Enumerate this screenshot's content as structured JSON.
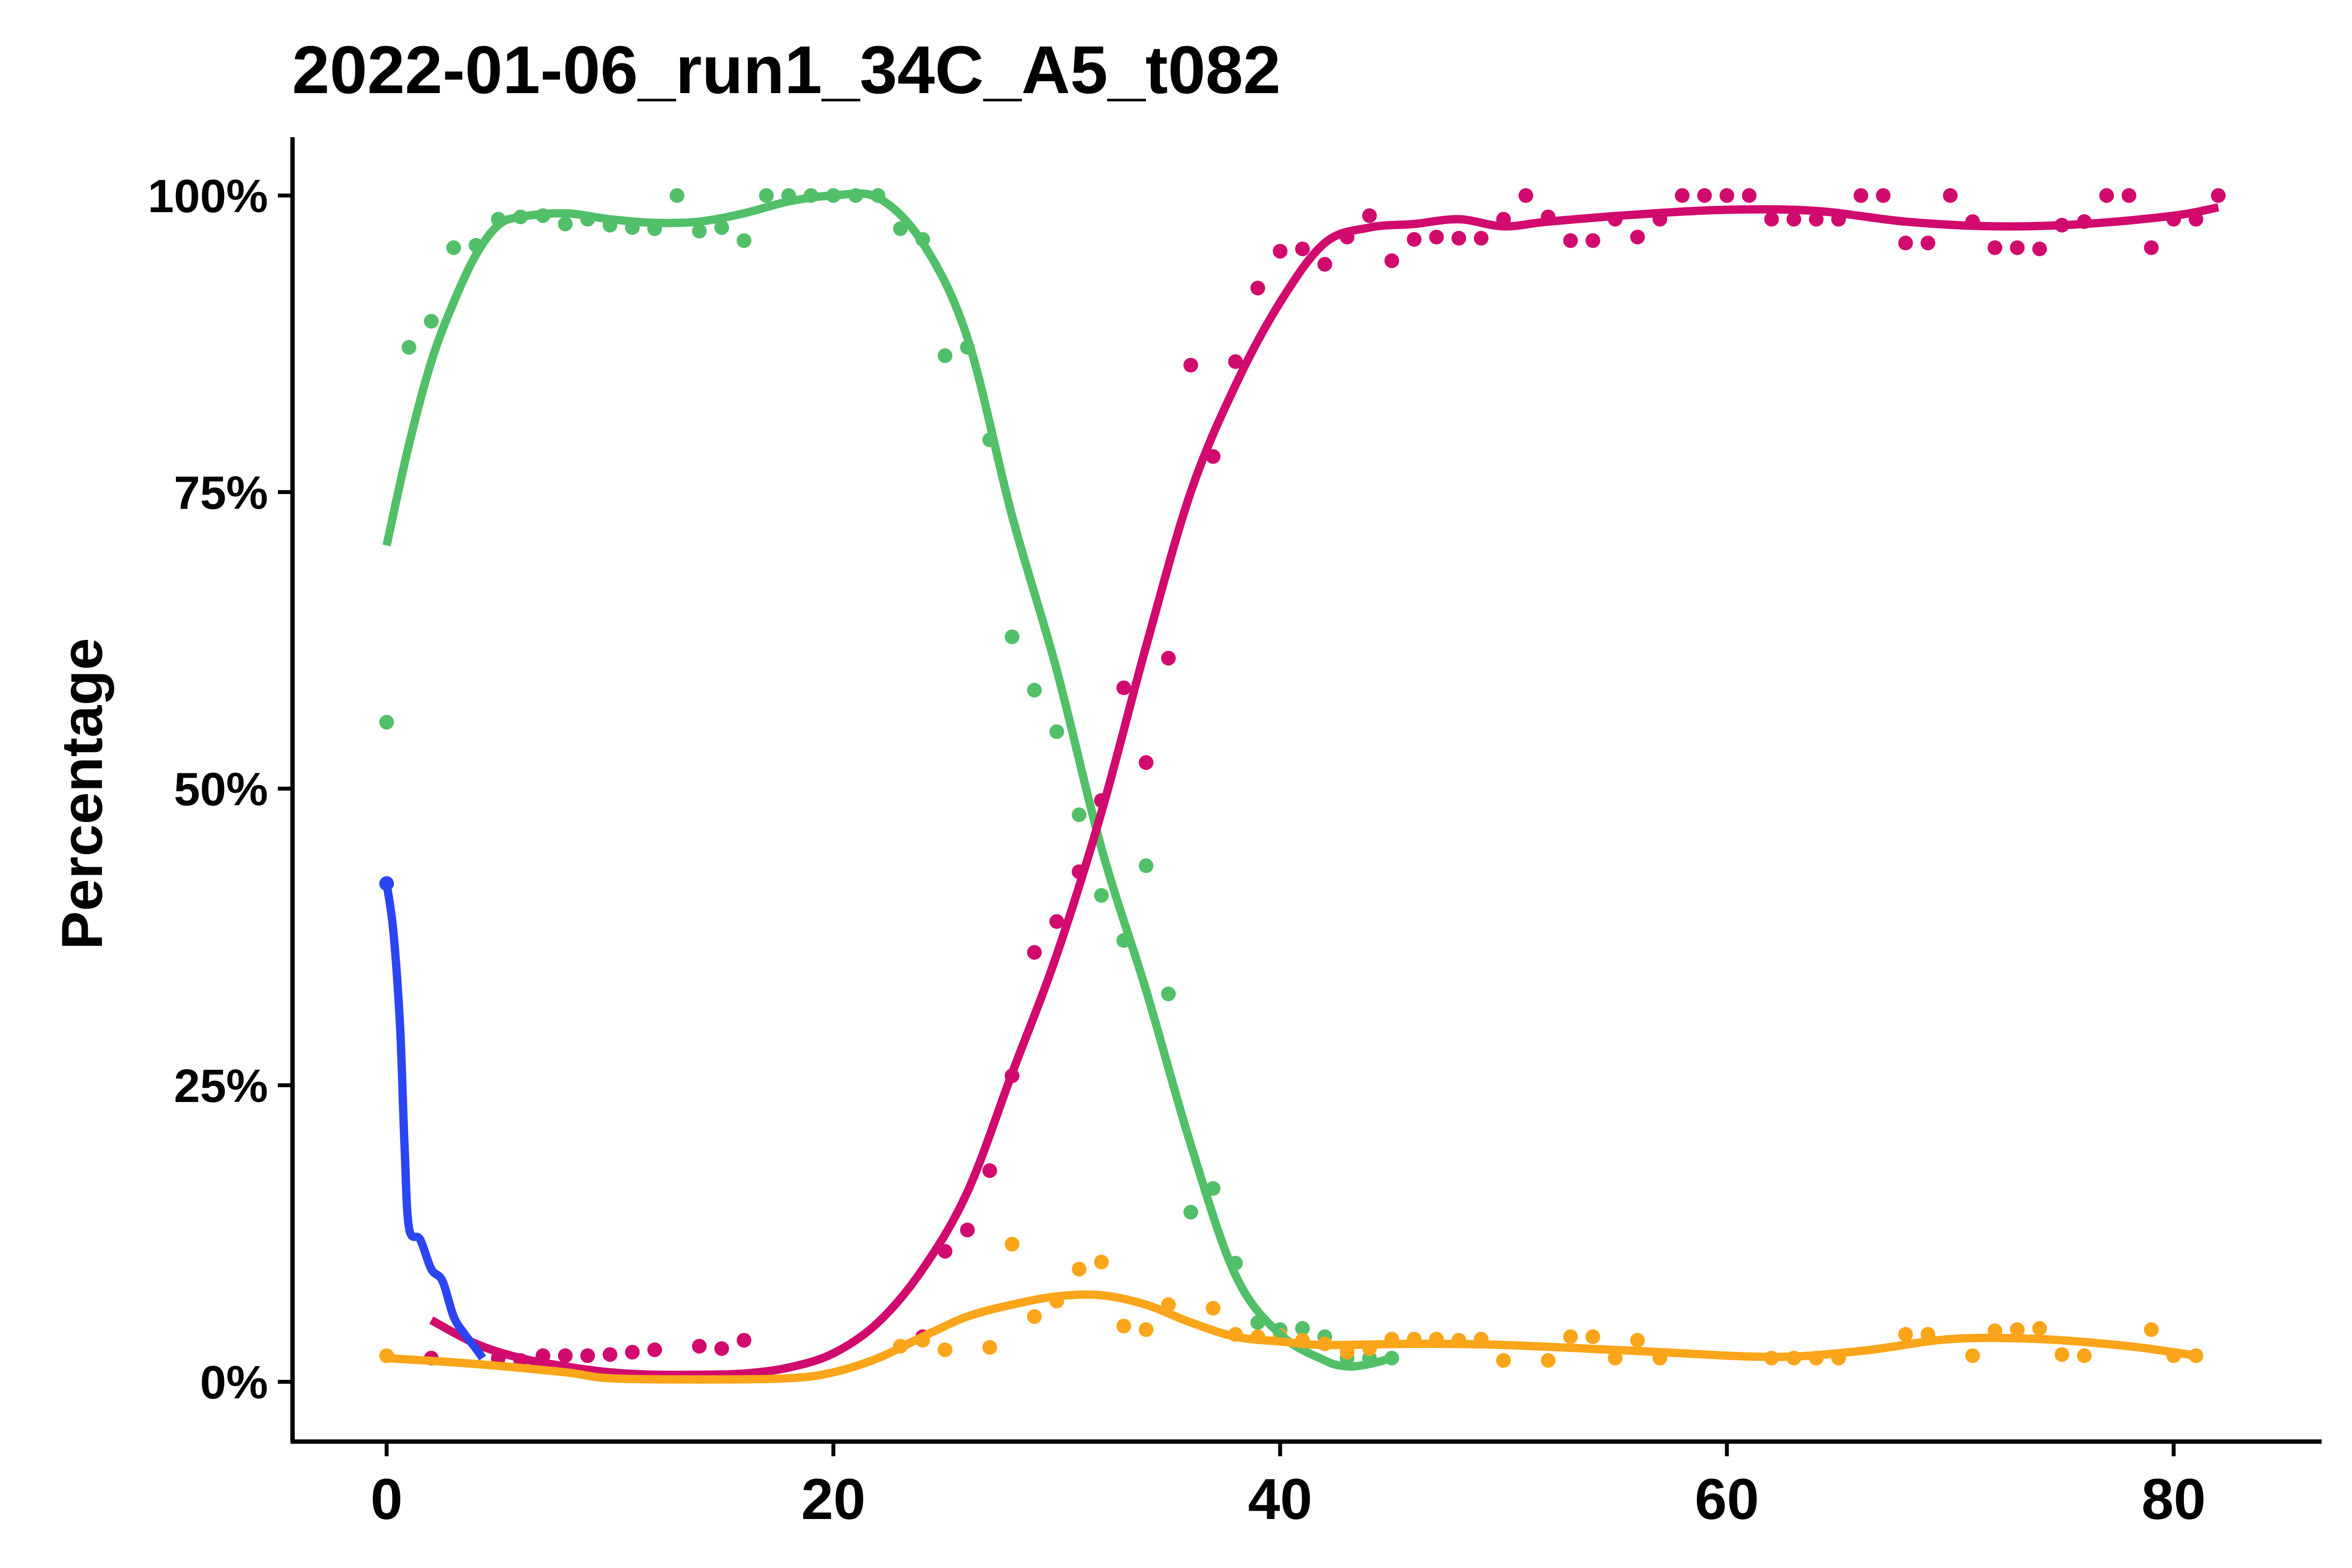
{
  "chart_data": {
    "type": "line",
    "title": "2022-01-06_run1_34C_A5_t082",
    "xlabel": "",
    "ylabel": "Percentage",
    "xlim": [
      -5,
      86
    ],
    "ylim": [
      -5,
      105
    ],
    "x_ticks": [
      0,
      20,
      40,
      60,
      80
    ],
    "x_tick_labels": [
      "0",
      "20",
      "40",
      "60",
      "80"
    ],
    "y_ticks": [
      0,
      25,
      50,
      75,
      100
    ],
    "y_tick_labels": [
      "0%",
      "25%",
      "50%",
      "75%",
      "100%"
    ],
    "grid": false,
    "legend": "none",
    "series": [
      {
        "color": "#2b45f0",
        "points": [
          [
            0,
            42
          ]
        ],
        "curve": [
          [
            0,
            42
          ],
          [
            0.3,
            38
          ],
          [
            0.6,
            30
          ],
          [
            0.8,
            20
          ],
          [
            1,
            13
          ],
          [
            1.5,
            12
          ],
          [
            2,
            9.5
          ],
          [
            2.5,
            8.5
          ],
          [
            3,
            5.5
          ],
          [
            3.5,
            4
          ],
          [
            4,
            2.8
          ],
          [
            4.3,
            2
          ]
        ]
      },
      {
        "color": "#d10a6e",
        "points": [
          [
            2,
            2
          ],
          [
            5,
            2
          ],
          [
            6,
            1.8
          ],
          [
            7,
            2.2
          ],
          [
            8,
            2.2
          ],
          [
            9,
            2.2
          ],
          [
            10,
            2.3
          ],
          [
            11,
            2.5
          ],
          [
            12,
            2.7
          ],
          [
            14,
            3
          ],
          [
            15,
            2.8
          ],
          [
            16,
            3.5
          ],
          [
            24,
            3.8
          ],
          [
            25,
            11
          ],
          [
            26,
            12.8
          ],
          [
            27,
            17.8
          ],
          [
            28,
            25.8
          ],
          [
            29,
            36.2
          ],
          [
            30,
            38.8
          ],
          [
            31,
            43
          ],
          [
            32,
            49
          ],
          [
            33,
            58.5
          ],
          [
            34,
            52.2
          ],
          [
            35,
            61
          ],
          [
            36,
            85.7
          ],
          [
            37,
            78
          ],
          [
            38,
            86
          ],
          [
            39,
            92.2
          ],
          [
            40,
            95.3
          ],
          [
            41,
            95.5
          ],
          [
            42,
            94.2
          ],
          [
            43,
            96.5
          ],
          [
            44,
            98.3
          ],
          [
            45,
            94.5
          ],
          [
            46,
            96.3
          ],
          [
            47,
            96.5
          ],
          [
            48,
            96.4
          ],
          [
            49,
            96.4
          ],
          [
            50,
            98
          ],
          [
            51,
            100
          ],
          [
            52,
            98.2
          ],
          [
            53,
            96.2
          ],
          [
            54,
            96.2
          ],
          [
            55,
            98
          ],
          [
            56,
            96.5
          ],
          [
            57,
            98
          ],
          [
            58,
            100
          ],
          [
            59,
            100
          ],
          [
            60,
            100
          ],
          [
            61,
            100
          ],
          [
            62,
            98
          ],
          [
            63,
            98
          ],
          [
            64,
            98
          ],
          [
            65,
            98
          ],
          [
            66,
            100
          ],
          [
            67,
            100
          ],
          [
            68,
            96
          ],
          [
            69,
            96
          ],
          [
            70,
            100
          ],
          [
            71,
            97.8
          ],
          [
            72,
            95.6
          ],
          [
            73,
            95.6
          ],
          [
            74,
            95.5
          ],
          [
            75,
            97.5
          ],
          [
            76,
            97.8
          ],
          [
            77,
            100
          ],
          [
            78,
            100
          ],
          [
            79,
            95.6
          ],
          [
            80,
            98
          ],
          [
            81,
            98
          ],
          [
            82,
            100
          ]
        ],
        "curve": [
          [
            2,
            5.2
          ],
          [
            4,
            3.2
          ],
          [
            6,
            2
          ],
          [
            8,
            1.3
          ],
          [
            10,
            0.8
          ],
          [
            12,
            0.6
          ],
          [
            14,
            0.6
          ],
          [
            16,
            0.7
          ],
          [
            18,
            1.2
          ],
          [
            20,
            2.4
          ],
          [
            22,
            5
          ],
          [
            24,
            9.5
          ],
          [
            26,
            16
          ],
          [
            28,
            26
          ],
          [
            30,
            36
          ],
          [
            32,
            48
          ],
          [
            34,
            62
          ],
          [
            36,
            75
          ],
          [
            38,
            84
          ],
          [
            40,
            91
          ],
          [
            42,
            96
          ],
          [
            44,
            97.3
          ],
          [
            46,
            97.6
          ],
          [
            48,
            98
          ],
          [
            50,
            97.4
          ],
          [
            52,
            97.8
          ],
          [
            56,
            98.4
          ],
          [
            60,
            98.8
          ],
          [
            64,
            98.7
          ],
          [
            68,
            97.8
          ],
          [
            72,
            97.4
          ],
          [
            76,
            97.6
          ],
          [
            80,
            98.3
          ],
          [
            82,
            99
          ]
        ]
      },
      {
        "color": "#52bf69",
        "points": [
          [
            0,
            55.6
          ],
          [
            1,
            87.2
          ],
          [
            2,
            89.4
          ],
          [
            3,
            95.6
          ],
          [
            4,
            95.8
          ],
          [
            5,
            98
          ],
          [
            6,
            98.2
          ],
          [
            7,
            98.3
          ],
          [
            8,
            97.6
          ],
          [
            9,
            98
          ],
          [
            10,
            97.5
          ],
          [
            11,
            97.3
          ],
          [
            12,
            97.2
          ],
          [
            13,
            100
          ],
          [
            14,
            97
          ],
          [
            15,
            97.3
          ],
          [
            16,
            96.2
          ],
          [
            17,
            100
          ],
          [
            18,
            100
          ],
          [
            19,
            100
          ],
          [
            20,
            100
          ],
          [
            21,
            100
          ],
          [
            22,
            100
          ],
          [
            23,
            97.2
          ],
          [
            24,
            96.3
          ],
          [
            25,
            86.5
          ],
          [
            26,
            87.2
          ],
          [
            27,
            79.4
          ],
          [
            28,
            62.8
          ],
          [
            29,
            58.3
          ],
          [
            30,
            54.8
          ],
          [
            31,
            47.8
          ],
          [
            32,
            41
          ],
          [
            33,
            37.2
          ],
          [
            34,
            43.5
          ],
          [
            35,
            32.7
          ],
          [
            36,
            14.3
          ],
          [
            37,
            16.3
          ],
          [
            38,
            10
          ],
          [
            39,
            5
          ],
          [
            40,
            4.4
          ],
          [
            41,
            4.5
          ],
          [
            42,
            3.8
          ],
          [
            43,
            2
          ],
          [
            44,
            2
          ],
          [
            45,
            2
          ]
        ],
        "curve": [
          [
            0,
            70.5
          ],
          [
            1,
            79
          ],
          [
            2,
            86
          ],
          [
            3,
            91
          ],
          [
            4,
            95
          ],
          [
            5,
            97.5
          ],
          [
            6,
            98.2
          ],
          [
            8,
            98.5
          ],
          [
            10,
            98
          ],
          [
            12,
            97.7
          ],
          [
            14,
            97.8
          ],
          [
            16,
            98.5
          ],
          [
            18,
            99.5
          ],
          [
            20,
            100
          ],
          [
            22,
            99.8
          ],
          [
            24,
            96
          ],
          [
            26,
            88
          ],
          [
            28,
            73
          ],
          [
            30,
            60
          ],
          [
            32,
            45
          ],
          [
            34,
            33
          ],
          [
            36,
            20
          ],
          [
            38,
            9
          ],
          [
            40,
            4
          ],
          [
            42,
            1.8
          ],
          [
            43,
            1.3
          ],
          [
            44,
            1.5
          ],
          [
            45,
            2
          ]
        ]
      },
      {
        "color": "#fba51a",
        "points": [
          [
            0,
            2.2
          ],
          [
            23,
            3
          ],
          [
            24,
            3.5
          ],
          [
            25,
            2.7
          ],
          [
            27,
            2.9
          ],
          [
            28,
            11.6
          ],
          [
            29,
            5.5
          ],
          [
            30,
            6.8
          ],
          [
            31,
            9.5
          ],
          [
            32,
            10.1
          ],
          [
            33,
            4.7
          ],
          [
            34,
            4.4
          ],
          [
            35,
            6.5
          ],
          [
            37,
            6.2
          ],
          [
            38,
            4
          ],
          [
            39,
            3.8
          ],
          [
            40,
            3.9
          ],
          [
            41,
            3.5
          ],
          [
            42,
            3.2
          ],
          [
            43,
            2.5
          ],
          [
            44,
            2.8
          ],
          [
            45,
            3.6
          ],
          [
            46,
            3.6
          ],
          [
            47,
            3.6
          ],
          [
            48,
            3.5
          ],
          [
            49,
            3.6
          ],
          [
            50,
            1.8
          ],
          [
            52,
            1.8
          ],
          [
            53,
            3.8
          ],
          [
            54,
            3.8
          ],
          [
            55,
            2
          ],
          [
            56,
            3.5
          ],
          [
            57,
            2
          ],
          [
            62,
            2
          ],
          [
            63,
            2
          ],
          [
            64,
            2
          ],
          [
            65,
            2
          ],
          [
            68,
            4
          ],
          [
            69,
            4
          ],
          [
            71,
            2.2
          ],
          [
            72,
            4.3
          ],
          [
            73,
            4.4
          ],
          [
            74,
            4.5
          ],
          [
            75,
            2.3
          ],
          [
            76,
            2.2
          ],
          [
            79,
            4.4
          ],
          [
            80,
            2.2
          ],
          [
            81,
            2.2
          ]
        ],
        "curve": [
          [
            0,
            2
          ],
          [
            4,
            1.5
          ],
          [
            8,
            0.8
          ],
          [
            10,
            0.3
          ],
          [
            14,
            0.2
          ],
          [
            18,
            0.3
          ],
          [
            20,
            0.8
          ],
          [
            22,
            2
          ],
          [
            24,
            3.8
          ],
          [
            26,
            5.5
          ],
          [
            28,
            6.5
          ],
          [
            30,
            7.2
          ],
          [
            32,
            7.3
          ],
          [
            34,
            6.5
          ],
          [
            36,
            5
          ],
          [
            38,
            3.8
          ],
          [
            40,
            3.4
          ],
          [
            42,
            3.1
          ],
          [
            46,
            3.2
          ],
          [
            50,
            3.1
          ],
          [
            56,
            2.6
          ],
          [
            62,
            2.1
          ],
          [
            66,
            2.6
          ],
          [
            70,
            3.6
          ],
          [
            74,
            3.6
          ],
          [
            78,
            3
          ],
          [
            81,
            2.2
          ]
        ]
      }
    ]
  }
}
